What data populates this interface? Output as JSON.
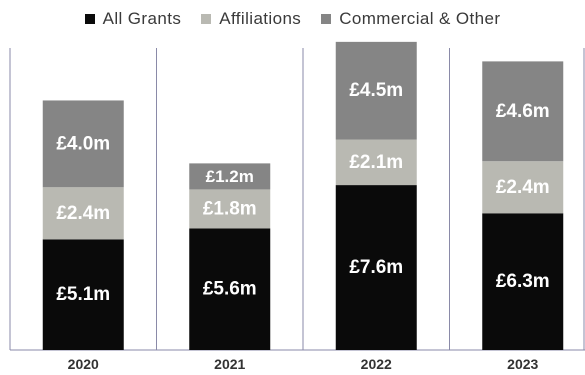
{
  "legend": [
    {
      "label": "All Grants",
      "color": "#0a0a0a"
    },
    {
      "label": "Affiliations",
      "color": "#b9b9b2"
    },
    {
      "label": "Commercial & Other",
      "color": "#858585"
    }
  ],
  "chart_data": {
    "type": "bar",
    "stacked": true,
    "categories": [
      "2020",
      "2021",
      "2022",
      "2023"
    ],
    "series": [
      {
        "name": "All Grants",
        "values": [
          5.1,
          5.6,
          7.6,
          6.3
        ],
        "labels": [
          "£5.1m",
          "£5.6m",
          "£7.6m",
          "£6.3m"
        ],
        "color": "#0a0a0a"
      },
      {
        "name": "Affiliations",
        "values": [
          2.4,
          1.8,
          2.1,
          2.4
        ],
        "labels": [
          "£2.4m",
          "£1.8m",
          "£2.1m",
          "£2.4m"
        ],
        "color": "#b9b9b2"
      },
      {
        "name": "Commercial & Other",
        "values": [
          4.0,
          1.2,
          4.5,
          4.6
        ],
        "labels": [
          "£4.0m",
          "£1.2m",
          "£4.5m",
          "£4.6m"
        ],
        "color": "#858585"
      }
    ],
    "title": "",
    "xlabel": "",
    "ylabel": "",
    "legend_position": "top",
    "grid": false
  }
}
